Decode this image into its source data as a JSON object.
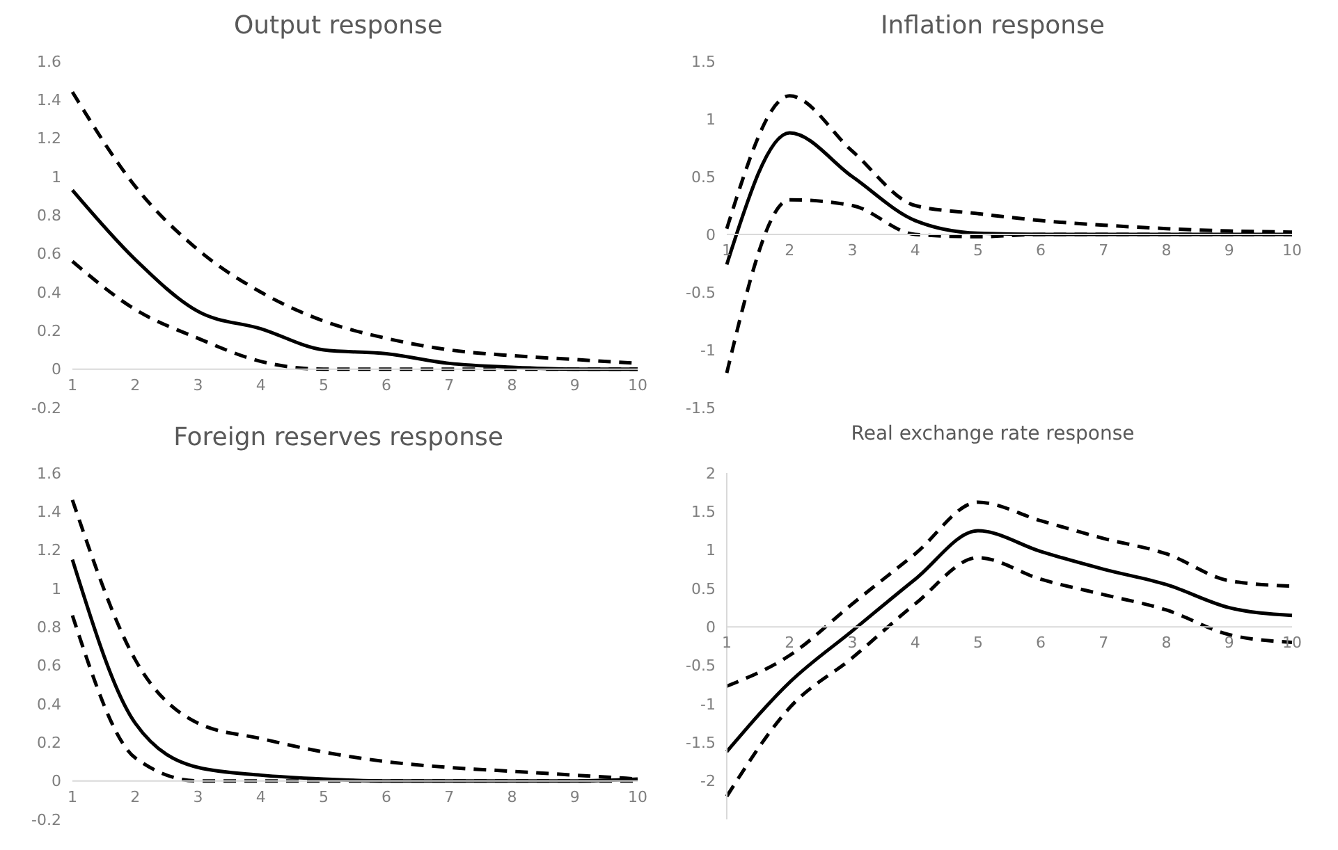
{
  "chart_data": [
    {
      "type": "line",
      "title": "Output response",
      "categories": [
        "1",
        "2",
        "3",
        "4",
        "5",
        "6",
        "7",
        "8",
        "9",
        "10"
      ],
      "ylim": [
        -0.2,
        1.6
      ],
      "yticks": [
        -0.2,
        0,
        0.2,
        0.4,
        0.6,
        0.8,
        1,
        1.2,
        1.4,
        1.6
      ],
      "series": [
        {
          "color": "#000000",
          "line_style": "solid",
          "values": [
            0.93,
            0.57,
            0.3,
            0.21,
            0.1,
            0.08,
            0.03,
            0.01,
            0.0,
            0.0
          ]
        },
        {
          "color": "#000000",
          "line_style": "dashed",
          "values": [
            1.44,
            0.95,
            0.62,
            0.4,
            0.25,
            0.16,
            0.1,
            0.07,
            0.05,
            0.03
          ]
        },
        {
          "color": "#000000",
          "line_style": "dashed",
          "values": [
            0.56,
            0.31,
            0.16,
            0.04,
            0.0,
            0.0,
            0.0,
            0.0,
            0.0,
            0.0
          ]
        }
      ]
    },
    {
      "type": "line",
      "title": "Inflation response",
      "categories": [
        "1",
        "2",
        "3",
        "4",
        "5",
        "6",
        "7",
        "8",
        "9",
        "10"
      ],
      "ylim": [
        -1.5,
        1.5
      ],
      "yticks": [
        -1.5,
        -1,
        -0.5,
        0,
        0.5,
        1,
        1.5
      ],
      "series": [
        {
          "color": "#000000",
          "line_style": "solid",
          "values": [
            -0.26,
            0.88,
            0.5,
            0.12,
            0.01,
            0,
            0,
            0,
            0,
            0
          ]
        },
        {
          "color": "#000000",
          "line_style": "dashed",
          "values": [
            0.05,
            1.2,
            0.72,
            0.25,
            0.18,
            0.12,
            0.08,
            0.05,
            0.03,
            0.02
          ]
        },
        {
          "color": "#000000",
          "line_style": "dashed",
          "values": [
            -1.2,
            0.3,
            0.25,
            0.0,
            -0.02,
            0,
            0,
            0,
            0,
            0
          ]
        }
      ]
    },
    {
      "type": "line",
      "title": "Foreign reserves response",
      "categories": [
        "1",
        "2",
        "3",
        "4",
        "5",
        "6",
        "7",
        "8",
        "9",
        "10"
      ],
      "ylim": [
        -0.2,
        1.6
      ],
      "yticks": [
        -0.2,
        0,
        0.2,
        0.4,
        0.6,
        0.8,
        1,
        1.2,
        1.4,
        1.6
      ],
      "series": [
        {
          "color": "#000000",
          "line_style": "solid",
          "values": [
            1.15,
            0.3,
            0.07,
            0.03,
            0.01,
            0,
            0,
            0,
            0,
            0.01
          ]
        },
        {
          "color": "#000000",
          "line_style": "dashed",
          "values": [
            1.46,
            0.63,
            0.3,
            0.22,
            0.15,
            0.1,
            0.07,
            0.05,
            0.03,
            0.01
          ]
        },
        {
          "color": "#000000",
          "line_style": "dashed",
          "values": [
            0.86,
            0.12,
            0,
            0,
            0,
            0,
            0,
            0,
            0,
            0
          ]
        }
      ]
    },
    {
      "type": "line",
      "title": "Real exchange rate response",
      "categories": [
        "1",
        "2",
        "3",
        "4",
        "5",
        "6",
        "7",
        "8",
        "9",
        "10"
      ],
      "ylim": [
        -2.5,
        2
      ],
      "yticks": [
        -2,
        -1.5,
        -1,
        -0.5,
        0,
        0.5,
        1,
        1.5,
        2
      ],
      "series": [
        {
          "color": "#000000",
          "line_style": "solid",
          "values": [
            -1.62,
            -0.72,
            -0.05,
            0.62,
            1.25,
            0.98,
            0.75,
            0.55,
            0.25,
            0.15
          ]
        },
        {
          "color": "#000000",
          "line_style": "dashed",
          "values": [
            -0.77,
            -0.37,
            0.3,
            0.95,
            1.62,
            1.38,
            1.15,
            0.95,
            0.6,
            0.53
          ]
        },
        {
          "color": "#000000",
          "line_style": "dashed",
          "values": [
            -2.2,
            -1.05,
            -0.4,
            0.3,
            0.9,
            0.62,
            0.42,
            0.22,
            -0.1,
            -0.2
          ]
        }
      ]
    }
  ]
}
